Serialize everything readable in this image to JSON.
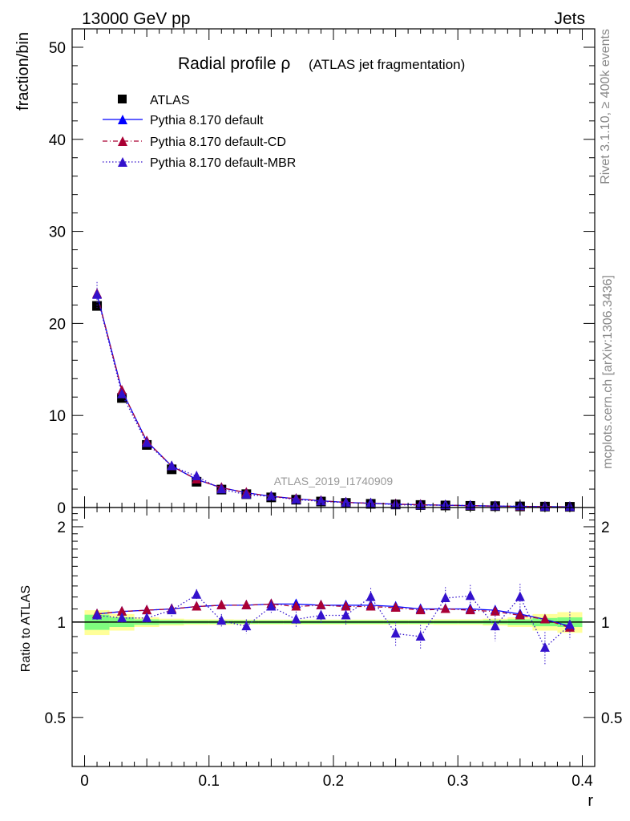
{
  "header": {
    "left": "13000 GeV pp",
    "right": "Jets"
  },
  "side_labels": {
    "rivet": "Rivet 3.1.10, ≥ 400k events",
    "mcplots": "mcplots.cern.ch [arXiv:1306.3436]"
  },
  "chart_data": [
    {
      "type": "scatter",
      "panel": "main",
      "title": "Radial profile ρ",
      "subtitle": "(ATLAS jet fragmentation)",
      "analysis": "ATLAS_2019_I1740909",
      "xlabel": "r",
      "ylabel": "fraction/bin",
      "xlim": [
        -0.01,
        0.41
      ],
      "ylim": [
        0,
        52
      ],
      "xticks": [
        "0",
        "0.1",
        "0.2",
        "0.3",
        "0.4"
      ],
      "yticks": [
        "0",
        "10",
        "20",
        "30",
        "40",
        "50"
      ],
      "x": [
        0.01,
        0.03,
        0.05,
        0.07,
        0.09,
        0.11,
        0.13,
        0.15,
        0.17,
        0.19,
        0.21,
        0.23,
        0.25,
        0.27,
        0.29,
        0.31,
        0.33,
        0.35,
        0.37,
        0.39
      ],
      "series": [
        {
          "name": "ATLAS",
          "color": "#000000",
          "marker": "square",
          "values": [
            21.9,
            11.9,
            6.8,
            4.15,
            2.8,
            1.95,
            1.45,
            1.1,
            0.85,
            0.65,
            0.5,
            0.4,
            0.33,
            0.27,
            0.22,
            0.18,
            0.15,
            0.12,
            0.1,
            0.08
          ]
        },
        {
          "name": "Pythia 8.170 default",
          "color": "#0000ff",
          "marker": "triangle",
          "line": "solid",
          "values": [
            23.2,
            12.7,
            7.2,
            4.5,
            3.05,
            2.15,
            1.6,
            1.22,
            0.95,
            0.73,
            0.56,
            0.45,
            0.37,
            0.3,
            0.25,
            0.2,
            0.16,
            0.13,
            0.1,
            0.08
          ]
        },
        {
          "name": "Pythia 8.170 default-CD",
          "color": "#aa0033",
          "marker": "triangle",
          "line": "dashdot",
          "values": [
            23.2,
            12.7,
            7.2,
            4.5,
            3.05,
            2.15,
            1.6,
            1.22,
            0.95,
            0.73,
            0.56,
            0.45,
            0.37,
            0.3,
            0.25,
            0.2,
            0.16,
            0.12,
            0.1,
            0.08
          ]
        },
        {
          "name": "Pythia 8.170 default-MBR",
          "color": "#3311cc",
          "marker": "triangle",
          "line": "dotted",
          "values": [
            23.1,
            12.3,
            7.0,
            4.5,
            3.4,
            1.98,
            1.4,
            1.2,
            0.86,
            0.67,
            0.53,
            0.48,
            0.31,
            0.24,
            0.26,
            0.22,
            0.15,
            0.15,
            0.08,
            0.08
          ],
          "errors": [
            1.4,
            0.4,
            0.2,
            0.15,
            0.15,
            0.1,
            0.08,
            0.06,
            0.05,
            0.04,
            0.04,
            0.03,
            0.03,
            0.03,
            0.02,
            0.02,
            0.02,
            0.02,
            0.02,
            0.02
          ]
        }
      ]
    },
    {
      "type": "line",
      "panel": "ratio",
      "ylabel": "Ratio to ATLAS",
      "xlabel": "r",
      "xlim": [
        -0.01,
        0.41
      ],
      "ylim": [
        0.35,
        2.3
      ],
      "yticks": [
        "0.5",
        "1",
        "2"
      ],
      "xticks": [
        "0",
        "0.1",
        "0.2",
        "0.3",
        "0.4"
      ],
      "x": [
        0.01,
        0.03,
        0.05,
        0.07,
        0.09,
        0.11,
        0.13,
        0.15,
        0.17,
        0.19,
        0.21,
        0.23,
        0.25,
        0.27,
        0.29,
        0.31,
        0.33,
        0.35,
        0.37,
        0.39
      ],
      "bands": {
        "stat_green": [
          0.055,
          0.035,
          0.02,
          0.015,
          0.012,
          0.012,
          0.012,
          0.012,
          0.012,
          0.012,
          0.012,
          0.012,
          0.012,
          0.012,
          0.012,
          0.012,
          0.015,
          0.02,
          0.03,
          0.035
        ],
        "total_yellow": [
          0.09,
          0.06,
          0.035,
          0.025,
          0.02,
          0.02,
          0.018,
          0.018,
          0.018,
          0.018,
          0.018,
          0.018,
          0.018,
          0.018,
          0.02,
          0.02,
          0.025,
          0.035,
          0.06,
          0.075
        ]
      },
      "series": [
        {
          "name": "Pythia 8.170 default",
          "color": "#0000ff",
          "values": [
            1.06,
            1.08,
            1.09,
            1.1,
            1.12,
            1.13,
            1.13,
            1.14,
            1.14,
            1.13,
            1.13,
            1.13,
            1.12,
            1.1,
            1.1,
            1.1,
            1.09,
            1.06,
            1.02,
            0.97
          ]
        },
        {
          "name": "Pythia 8.170 default-CD",
          "color": "#aa0033",
          "values": [
            1.06,
            1.08,
            1.09,
            1.1,
            1.12,
            1.13,
            1.13,
            1.14,
            1.12,
            1.13,
            1.12,
            1.12,
            1.11,
            1.09,
            1.1,
            1.09,
            1.08,
            1.05,
            1.02,
            0.96
          ]
        },
        {
          "name": "Pythia 8.170 default-MBR",
          "color": "#3311cc",
          "values": [
            1.05,
            1.03,
            1.03,
            1.09,
            1.22,
            1.01,
            0.97,
            1.12,
            1.02,
            1.05,
            1.05,
            1.2,
            0.92,
            0.9,
            1.19,
            1.21,
            0.97,
            1.2,
            0.83,
            0.98
          ],
          "errors": [
            0.04,
            0.04,
            0.04,
            0.05,
            0.05,
            0.05,
            0.05,
            0.05,
            0.06,
            0.06,
            0.07,
            0.08,
            0.08,
            0.08,
            0.1,
            0.1,
            0.1,
            0.12,
            0.1,
            0.1
          ]
        }
      ]
    }
  ]
}
